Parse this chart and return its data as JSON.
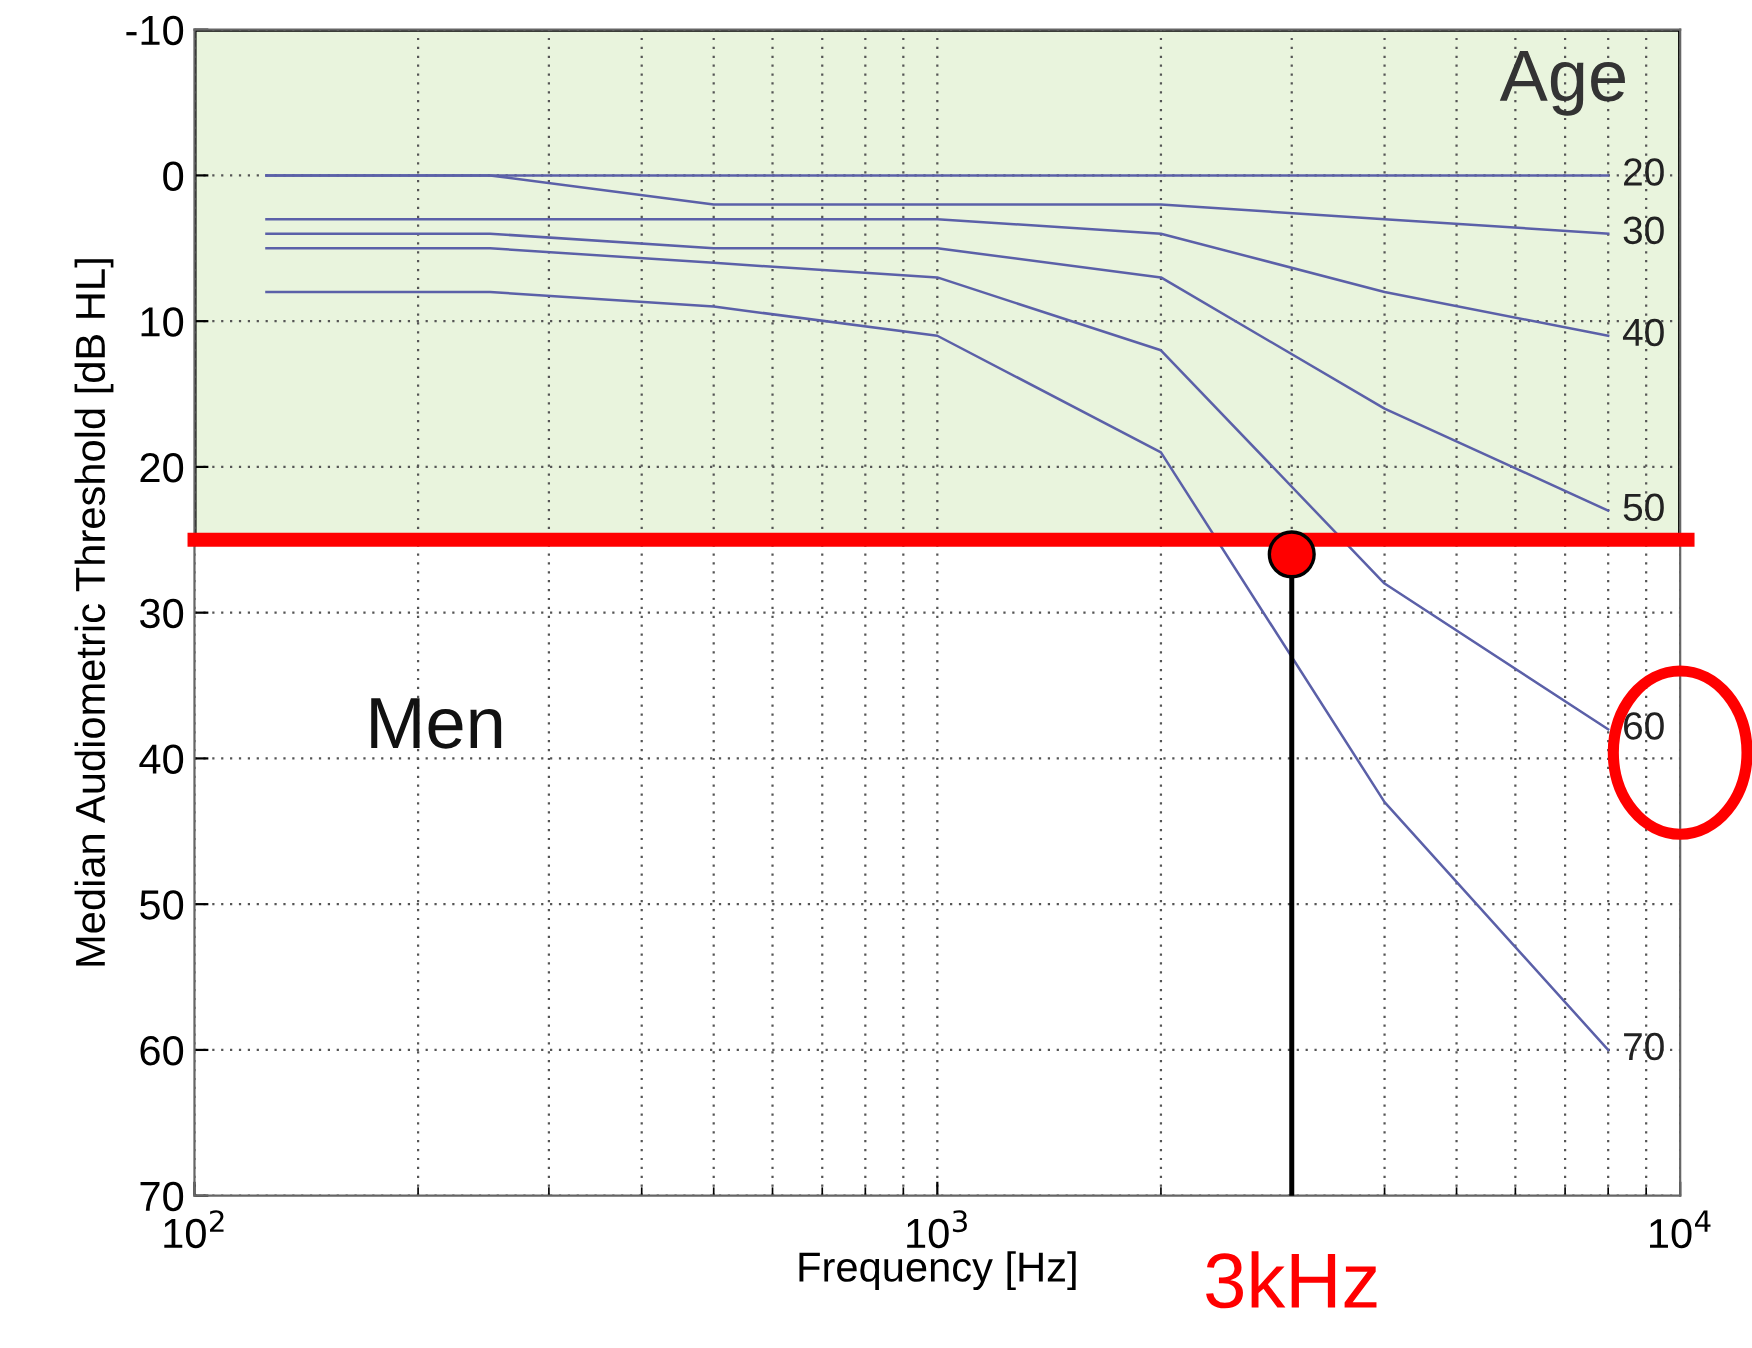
{
  "chart_data": {
    "type": "line",
    "xlabel": "Frequency [Hz]",
    "ylabel": "Median Audiometric Threshold [dB HL]",
    "x": [
      125,
      250,
      500,
      1000,
      2000,
      4000,
      8000
    ],
    "series": [
      {
        "name": "20",
        "color": "#5b60a8",
        "values": [
          0,
          0,
          0,
          0,
          0,
          0,
          0
        ]
      },
      {
        "name": "30",
        "color": "#5b60a8",
        "values": [
          0,
          0,
          2,
          2,
          2,
          3,
          4
        ]
      },
      {
        "name": "40",
        "color": "#5b60a8",
        "values": [
          3,
          3,
          3,
          3,
          4,
          8,
          11
        ]
      },
      {
        "name": "50",
        "color": "#5b60a8",
        "values": [
          4,
          4,
          5,
          5,
          7,
          16,
          23
        ]
      },
      {
        "name": "60",
        "color": "#5b60a8",
        "values": [
          5,
          5,
          6,
          7,
          12,
          28,
          38
        ]
      },
      {
        "name": "70",
        "color": "#5b60a8",
        "values": [
          8,
          8,
          9,
          11,
          19,
          43,
          60
        ]
      },
      {
        "type": "scatter",
        "marker": "circle",
        "color": "#ff0000",
        "x": [
          3000
        ],
        "values": [
          26
        ]
      }
    ],
    "log": "x",
    "xlim": [
      100,
      10000
    ],
    "xticks": [
      {
        "value": 100,
        "label": "10$^{2}$"
      },
      {
        "value": 1000,
        "label": "10$^{3}$"
      },
      {
        "value": 10000,
        "label": "10$^{4}$"
      }
    ],
    "ylim": [
      70,
      -10
    ],
    "yticks": [
      -10,
      0,
      10,
      20,
      30,
      40,
      50,
      60,
      70
    ],
    "grid": true,
    "legend": false,
    "marker": "none",
    "line_style": "solid",
    "bands": [
      {
        "axis": "y",
        "from": -10,
        "to": 25,
        "color": "#e9f4dd"
      }
    ],
    "ref_lines": [
      {
        "axis": "y",
        "value": 25,
        "color": "#ff0000"
      },
      {
        "axis": "x",
        "value": 3000,
        "label": "3kHz",
        "color": "#000000"
      }
    ],
    "annotations": [
      "Age",
      "Men"
    ]
  }
}
